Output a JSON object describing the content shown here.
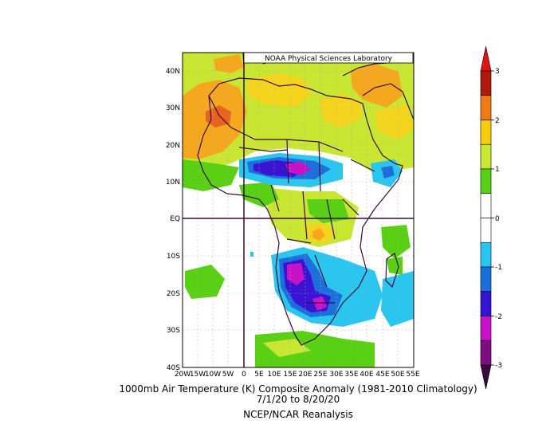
{
  "map": {
    "credit": "NOAA Physical Sciences Laboratory",
    "title_line1": "1000mb Air Temperature (K) Composite Anomaly (1981-2010 Climatology)",
    "title_line2": "7/1/20  to 8/20/20",
    "title_line3": "NCEP/NCAR Reanalysis",
    "lon_labels": [
      "20W",
      "15W",
      "10W",
      "5W",
      "0",
      "5E",
      "10E",
      "15E",
      "20E",
      "25E",
      "30E",
      "35E",
      "40E",
      "45E",
      "50E",
      "55E"
    ],
    "lat_labels": [
      "40N",
      "30N",
      "20N",
      "10N",
      "EQ",
      "10S",
      "20S",
      "30S",
      "40S"
    ],
    "colorbar": {
      "ticks": [
        "3",
        "2",
        "1",
        "0",
        "-1",
        "-2",
        "-3"
      ],
      "colors": [
        "#b01a0a",
        "#f07a14",
        "#f5cd0a",
        "#c8e832",
        "#5ad014",
        "#ffffff",
        "#ffffff",
        "#2bc6ef",
        "#1d70dc",
        "#3214d2",
        "#c812c8",
        "#7d0e7d"
      ]
    },
    "region_colors": {
      "orange": "#f5a81e",
      "red_orange": "#e8641e",
      "yellow": "#f5d41e",
      "light_green": "#c8e632",
      "green": "#5ad014",
      "cyan": "#2bc6ef",
      "blue": "#1d70dc",
      "indigo": "#3a14d2",
      "magenta": "#c812c8",
      "purple": "#7d0e7d"
    }
  }
}
